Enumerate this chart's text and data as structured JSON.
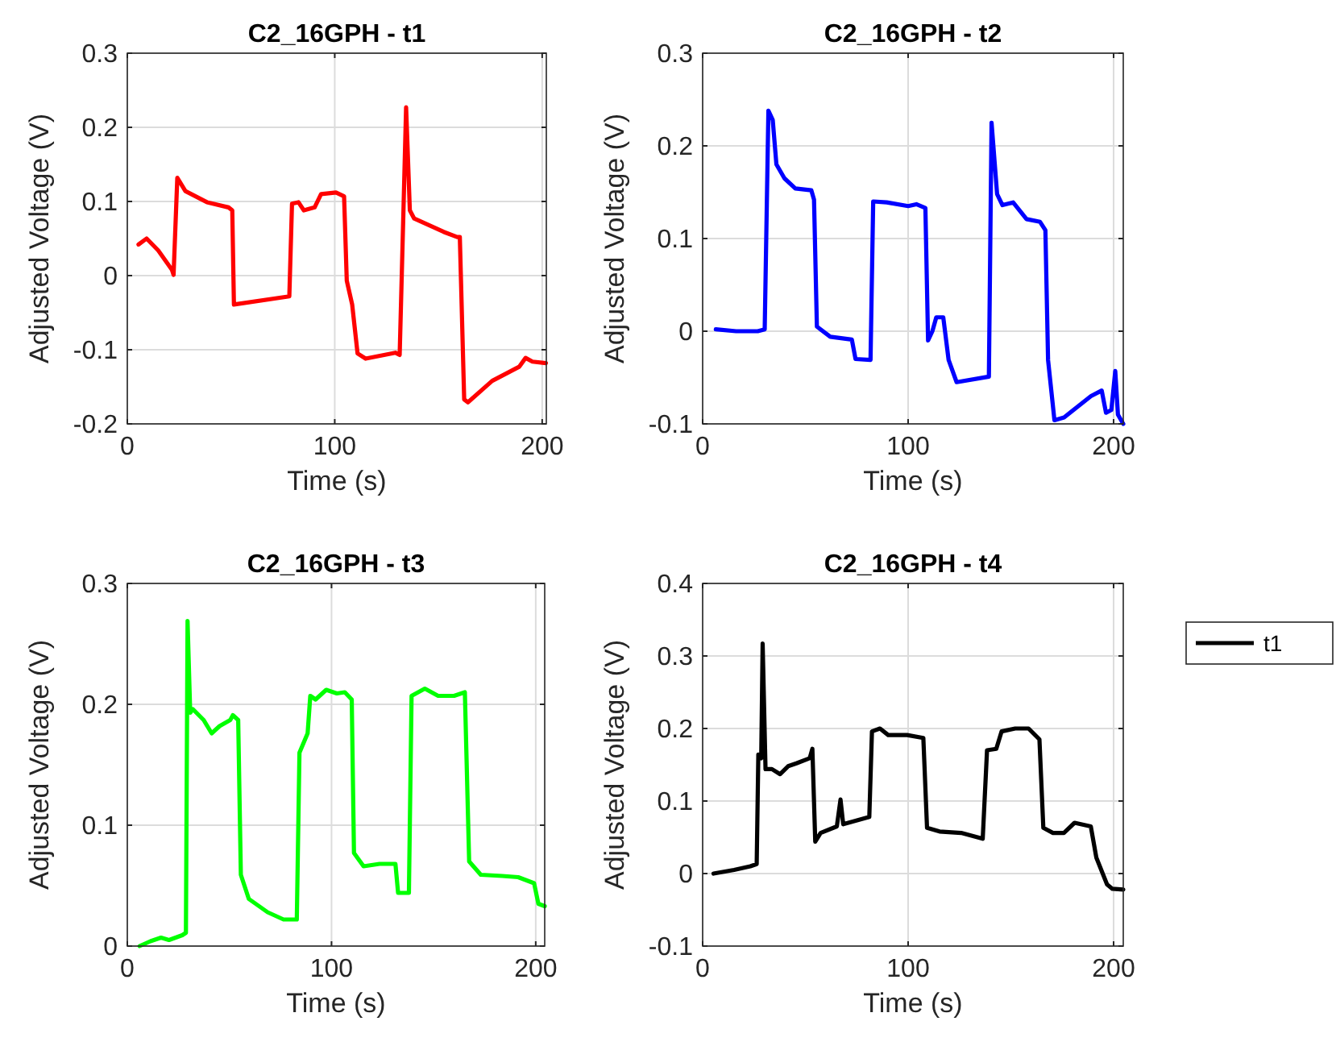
{
  "chart_data": [
    {
      "type": "line",
      "title": "C2_16GPH - t1",
      "xlabel": "Time (s)",
      "ylabel": "Adjusted Voltage (V)",
      "xlim": [
        0,
        202
      ],
      "xticks": [
        0,
        100,
        200
      ],
      "ylim": [
        -0.2,
        0.3
      ],
      "yticks": [
        -0.2,
        -0.1,
        0,
        0.1,
        0.2,
        0.3
      ],
      "grid": true,
      "series": [
        {
          "color": "#ff0000",
          "x": [
            5.4,
            9.3,
            14.9,
            21.5,
            22.3,
            24.1,
            28,
            38.4,
            48.8,
            50.6,
            51.4,
            78.1,
            79.4,
            82.5,
            85.1,
            90.3,
            93.4,
            100.6,
            104.5,
            105.8,
            108.4,
            111,
            114.9,
            129.2,
            131.3,
            133.1,
            134.4,
            136.2,
            138.3,
            152.5,
            159,
            160.3,
            162.4,
            164.2,
            175.9,
            188.9,
            192,
            195.3,
            201.8
          ],
          "values": [
            0.042,
            0.05,
            0.034,
            0.008,
            0.001,
            0.132,
            0.114,
            0.099,
            0.092,
            0.088,
            -0.039,
            -0.028,
            0.097,
            0.099,
            0.088,
            0.092,
            0.11,
            0.112,
            0.107,
            -0.007,
            -0.039,
            -0.105,
            -0.112,
            -0.104,
            -0.107,
            0.085,
            0.227,
            0.088,
            0.077,
            0.059,
            0.052,
            0.052,
            -0.167,
            -0.171,
            -0.142,
            -0.123,
            -0.111,
            -0.116,
            -0.118
          ]
        }
      ]
    },
    {
      "type": "line",
      "title": "C2_16GPH - t2",
      "xlabel": "Time (s)",
      "ylabel": "Adjusted Voltage (V)",
      "xlim": [
        0,
        204.7
      ],
      "xticks": [
        0,
        100,
        200
      ],
      "ylim": [
        -0.1,
        0.3
      ],
      "yticks": [
        -0.1,
        0,
        0.1,
        0.2,
        0.3
      ],
      "grid": true,
      "series": [
        {
          "color": "#0000ff",
          "x": [
            6.4,
            16.3,
            26.8,
            30.2,
            32,
            34.1,
            35.9,
            39.8,
            45.1,
            52.9,
            54.2,
            55.6,
            62.1,
            72.6,
            74.4,
            81.7,
            83,
            89.6,
            100,
            104,
            108.4,
            109.7,
            111.8,
            113.7,
            117.1,
            119.7,
            123.6,
            139.3,
            140.6,
            143.3,
            145.9,
            151.1,
            157.6,
            164.2,
            166.8,
            168.1,
            171.2,
            175.9,
            189,
            194.2,
            196.3,
            198.9,
            200.8,
            202.1,
            204.7
          ],
          "values": [
            0.002,
            0,
            0,
            0.002,
            0.238,
            0.228,
            0.18,
            0.165,
            0.154,
            0.152,
            0.142,
            0.005,
            -0.006,
            -0.009,
            -0.03,
            -0.031,
            0.14,
            0.139,
            0.135,
            0.137,
            0.133,
            -0.01,
            0,
            0.015,
            0.015,
            -0.031,
            -0.055,
            -0.049,
            0.225,
            0.148,
            0.136,
            0.139,
            0.121,
            0.118,
            0.109,
            -0.031,
            -0.096,
            -0.093,
            -0.07,
            -0.064,
            -0.088,
            -0.085,
            -0.043,
            -0.09,
            -0.1
          ]
        }
      ]
    },
    {
      "type": "line",
      "title": "C2_16GPH - t3",
      "xlabel": "Time (s)",
      "ylabel": "Adjusted Voltage (V)",
      "xlim": [
        0,
        204.4
      ],
      "xticks": [
        0,
        100,
        200
      ],
      "ylim": [
        0,
        0.3
      ],
      "yticks": [
        0,
        0.1,
        0.2,
        0.3
      ],
      "grid": true,
      "series": [
        {
          "color": "#00ff00",
          "x": [
            6,
            11.3,
            16.5,
            20.4,
            26.9,
            28.7,
            29.5,
            30.8,
            32.1,
            37.4,
            41.3,
            45.2,
            50.4,
            51.7,
            54.3,
            55.6,
            59.5,
            68.7,
            76.5,
            83,
            84.3,
            88.3,
            89.6,
            92.2,
            97.4,
            102.6,
            106.5,
            109.9,
            111,
            115.7,
            123.5,
            131.3,
            132.6,
            137.9,
            139.2,
            145.7,
            152.2,
            160,
            165.3,
            167.4,
            173.1,
            183.6,
            191.4,
            199.2,
            201.3,
            204.4
          ],
          "values": [
            0,
            0.004,
            0.007,
            0.005,
            0.009,
            0.011,
            0.269,
            0.193,
            0.196,
            0.187,
            0.176,
            0.182,
            0.187,
            0.191,
            0.187,
            0.059,
            0.039,
            0.028,
            0.022,
            0.022,
            0.16,
            0.176,
            0.207,
            0.204,
            0.212,
            0.209,
            0.21,
            0.204,
            0.077,
            0.066,
            0.068,
            0.068,
            0.044,
            0.044,
            0.207,
            0.213,
            0.207,
            0.207,
            0.21,
            0.07,
            0.059,
            0.058,
            0.057,
            0.052,
            0.035,
            0.033
          ]
        }
      ]
    },
    {
      "type": "line",
      "title": "C2_16GPH - t4",
      "xlabel": "Time (s)",
      "ylabel": "Adjusted Voltage (V)",
      "xlim": [
        0,
        204.7
      ],
      "xticks": [
        0,
        100,
        200
      ],
      "ylim": [
        -0.1,
        0.4
      ],
      "yticks": [
        -0.1,
        0,
        0.1,
        0.2,
        0.3,
        0.4
      ],
      "grid": true,
      "legend": "right",
      "series": [
        {
          "name": "t1",
          "color": "#000000",
          "x": [
            5.3,
            15.3,
            23.2,
            26.3,
            27.1,
            28.5,
            29.2,
            30.6,
            33.7,
            37.7,
            41.6,
            45.6,
            52.1,
            53.4,
            54.8,
            57.4,
            65.3,
            67.1,
            68.4,
            81.1,
            82.4,
            86.3,
            90.3,
            99.5,
            107.4,
            109.2,
            115.3,
            125.8,
            136.3,
            138.4,
            142.9,
            145.5,
            152.1,
            158.6,
            163.9,
            165.8,
            170.5,
            175.8,
            181,
            188.9,
            191.6,
            196.8,
            199.4,
            204.7
          ],
          "values": [
            0,
            0.005,
            0.01,
            0.013,
            0.164,
            0.159,
            0.317,
            0.144,
            0.144,
            0.137,
            0.148,
            0.152,
            0.159,
            0.172,
            0.044,
            0.056,
            0.065,
            0.102,
            0.068,
            0.078,
            0.196,
            0.2,
            0.191,
            0.191,
            0.187,
            0.063,
            0.058,
            0.056,
            0.048,
            0.17,
            0.172,
            0.196,
            0.2,
            0.2,
            0.185,
            0.063,
            0.056,
            0.056,
            0.07,
            0.065,
            0.022,
            -0.015,
            -0.021,
            -0.022
          ]
        }
      ]
    }
  ]
}
